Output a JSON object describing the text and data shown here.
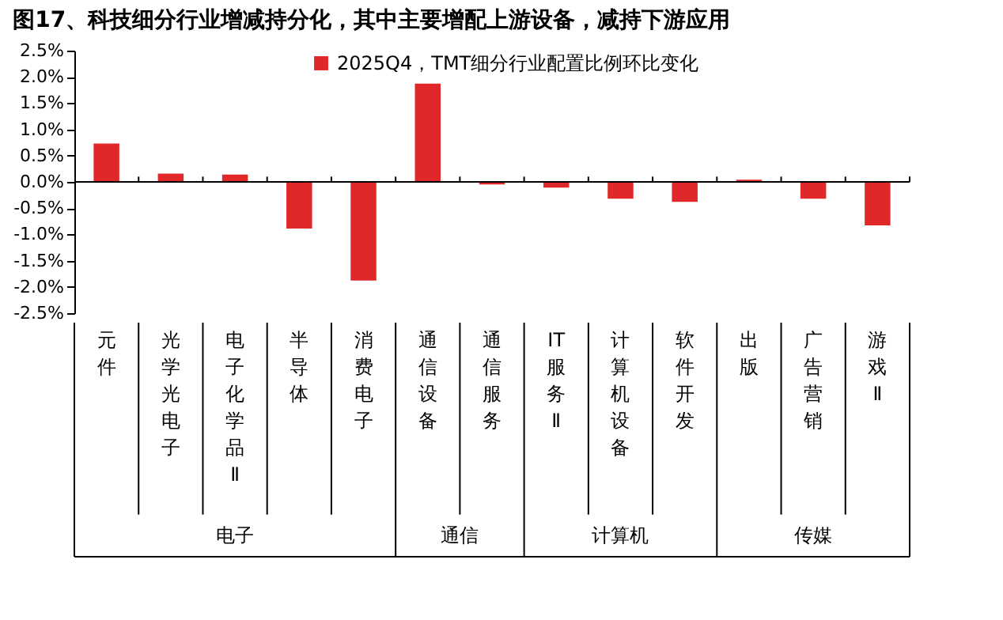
{
  "chart_data": {
    "type": "bar",
    "title": "图17、科技细分行业增减持分化，其中主要增配上游设备，减持下游应用",
    "categories": [
      "元件",
      "光学光电子",
      "电子化学品Ⅱ",
      "半导体",
      "消费电子",
      "通信设备",
      "通信服务",
      "IT服务Ⅱ",
      "计算机设备",
      "软件开发",
      "出版",
      "广告营销",
      "游戏Ⅱ"
    ],
    "series": [
      {
        "name": "2025Q4，TMT细分行业配置比例环比变化",
        "color": "#e0282a",
        "values": [
          0.73,
          0.16,
          0.14,
          -0.89,
          -1.88,
          1.87,
          -0.05,
          -0.11,
          -0.32,
          -0.38,
          0.04,
          -0.32,
          -0.83
        ]
      }
    ],
    "ylim": [
      -2.5,
      2.5
    ],
    "yticks": [
      {
        "value": -2.5,
        "label": "-2.5%"
      },
      {
        "value": -2.0,
        "label": "-2.0%"
      },
      {
        "value": -1.5,
        "label": "-1.5%"
      },
      {
        "value": -1.0,
        "label": "-1.0%"
      },
      {
        "value": -0.5,
        "label": "-0.5%"
      },
      {
        "value": 0.0,
        "label": "0.0%"
      },
      {
        "value": 0.5,
        "label": "0.5%"
      },
      {
        "value": 1.0,
        "label": "1.0%"
      },
      {
        "value": 1.5,
        "label": "1.5%"
      },
      {
        "value": 2.0,
        "label": "2.0%"
      },
      {
        "value": 2.5,
        "label": "2.5%"
      }
    ],
    "annotations": [
      "电子",
      "通信",
      "计算机",
      "传媒"
    ],
    "legend": "top"
  }
}
